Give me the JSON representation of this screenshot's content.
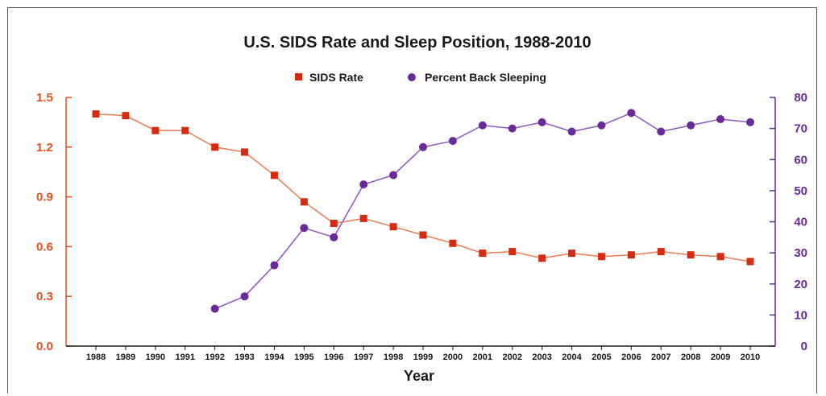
{
  "chart_data": {
    "type": "line",
    "title": "U.S. SIDS Rate and Sleep Position, 1988-2010",
    "xlabel": "Year",
    "legend_placement": "top-center",
    "grid": false,
    "x": [
      "1988",
      "1989",
      "1990",
      "1991",
      "1992",
      "1993",
      "1994",
      "1995",
      "1996",
      "1997",
      "1998",
      "1999",
      "2000",
      "2001",
      "2002",
      "2003",
      "2004",
      "2005",
      "2006",
      "2007",
      "2008",
      "2009",
      "2010"
    ],
    "left_axis": {
      "ylim": [
        0,
        1.5
      ],
      "ticks": [
        "0.0",
        "0.3",
        "0.6",
        "0.9",
        "1.2",
        "1.5"
      ],
      "color": "#e0521c"
    },
    "right_axis": {
      "ylim": [
        0,
        80
      ],
      "ticks": [
        "0",
        "10",
        "20",
        "30",
        "40",
        "50",
        "60",
        "70",
        "80"
      ],
      "color": "#6a2a9a"
    },
    "series": [
      {
        "name": "SIDS Rate",
        "axis": "left",
        "marker": "square",
        "marker_color": "#d42b12",
        "line_color": "#ef7a52",
        "values": [
          1.4,
          1.39,
          1.3,
          1.3,
          1.2,
          1.17,
          1.03,
          0.87,
          0.74,
          0.77,
          0.72,
          0.67,
          0.62,
          0.56,
          0.57,
          0.53,
          0.56,
          0.54,
          0.55,
          0.57,
          0.55,
          0.54,
          0.51
        ]
      },
      {
        "name": "Percent Back Sleeping",
        "axis": "right",
        "marker": "circle",
        "marker_color": "#6a2a9a",
        "line_color": "#8e55c2",
        "values": [
          null,
          null,
          null,
          null,
          12,
          16,
          26,
          38,
          35,
          52,
          55,
          64,
          66,
          71,
          70,
          72,
          69,
          71,
          75,
          69,
          71,
          73,
          72
        ]
      }
    ]
  }
}
